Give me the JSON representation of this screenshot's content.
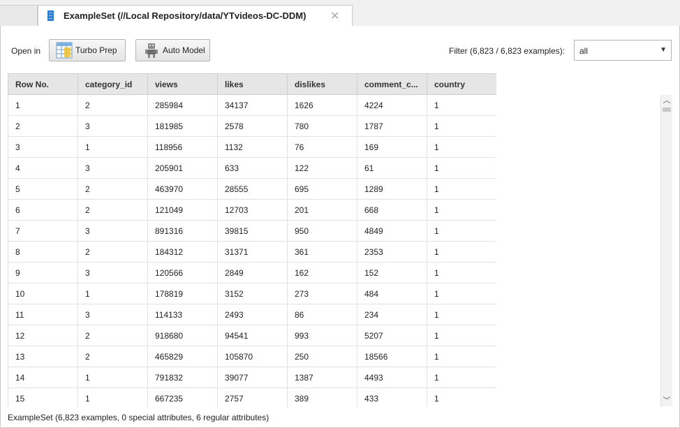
{
  "tab": {
    "title": "ExampleSet (//Local Repository/data/YTvideos-DC-DDM)",
    "close_glyph": "✕",
    "icon": "exampleset-icon"
  },
  "toolbar": {
    "open_in_label": "Open in",
    "turbo_prep_label": "Turbo Prep",
    "turbo_prep_icon": "turbo-prep-icon",
    "auto_model_label": "Auto Model",
    "auto_model_icon": "robot-icon",
    "filter_label": "Filter (6,823 / 6,823 examples):",
    "filter_value": "all"
  },
  "table": {
    "columns": [
      "Row No.",
      "category_id",
      "views",
      "likes",
      "dislikes",
      "comment_c...",
      "country"
    ],
    "rows": [
      [
        "1",
        "2",
        "285984",
        "34137",
        "1626",
        "4224",
        "1"
      ],
      [
        "2",
        "3",
        "181985",
        "2578",
        "780",
        "1787",
        "1"
      ],
      [
        "3",
        "1",
        "118956",
        "1132",
        "76",
        "169",
        "1"
      ],
      [
        "4",
        "3",
        "205901",
        "633",
        "122",
        "61",
        "1"
      ],
      [
        "5",
        "2",
        "463970",
        "28555",
        "695",
        "1289",
        "1"
      ],
      [
        "6",
        "2",
        "121049",
        "12703",
        "201",
        "668",
        "1"
      ],
      [
        "7",
        "3",
        "891316",
        "39815",
        "950",
        "4849",
        "1"
      ],
      [
        "8",
        "2",
        "184312",
        "31371",
        "361",
        "2353",
        "1"
      ],
      [
        "9",
        "3",
        "120566",
        "2849",
        "162",
        "152",
        "1"
      ],
      [
        "10",
        "1",
        "178819",
        "3152",
        "273",
        "484",
        "1"
      ],
      [
        "11",
        "3",
        "114133",
        "2493",
        "86",
        "234",
        "1"
      ],
      [
        "12",
        "2",
        "918680",
        "94541",
        "993",
        "5207",
        "1"
      ],
      [
        "13",
        "2",
        "465829",
        "105870",
        "250",
        "18566",
        "1"
      ],
      [
        "14",
        "1",
        "791832",
        "39077",
        "1387",
        "4493",
        "1"
      ],
      [
        "15",
        "1",
        "667235",
        "2757",
        "389",
        "433",
        "1"
      ]
    ]
  },
  "status": "ExampleSet (6,823 examples, 0 special attributes, 6 regular attributes)",
  "colors": {
    "header_bg": "#e6e6e6",
    "grid_line": "#e2e2e2",
    "tab_icon": "#2e7fd0"
  }
}
